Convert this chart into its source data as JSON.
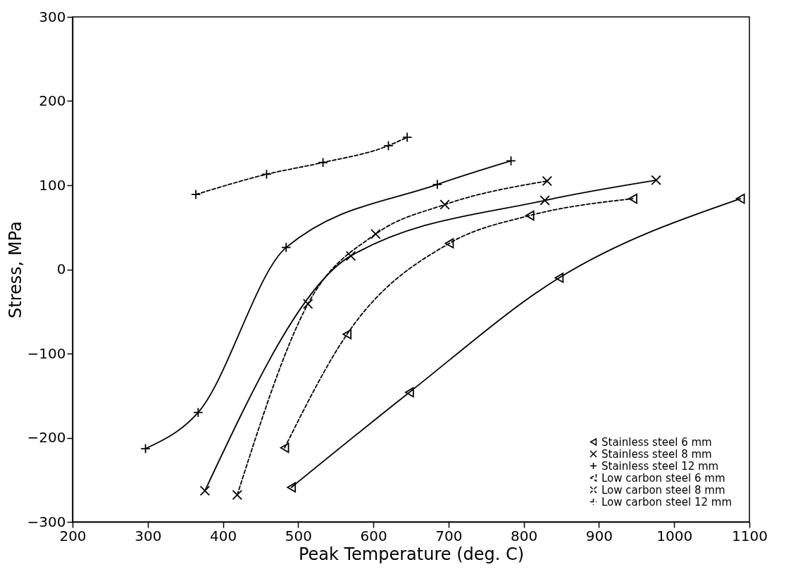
{
  "chart_data": {
    "type": "line",
    "xlabel": "Peak Temperature (deg. C)",
    "ylabel": "Stress, MPa",
    "xlim": [
      200,
      1100
    ],
    "ylim": [
      -300,
      300
    ],
    "xticks": [
      200,
      300,
      400,
      500,
      600,
      700,
      800,
      900,
      1000,
      1100
    ],
    "yticks": [
      -300,
      -200,
      -100,
      0,
      100,
      200,
      300
    ],
    "legend": "bottom right",
    "series": [
      {
        "name": "Stainless steel    6  mm",
        "color": "#000000",
        "marker": "triangle",
        "line_style": "solid",
        "x": [
          491,
          648,
          847,
          1088
        ],
        "values": [
          -259,
          -146,
          -10,
          84
        ]
      },
      {
        "name": "Stainless steel    8  mm",
        "color": "#000000",
        "marker": "cross",
        "line_style": "solid",
        "x": [
          376,
          570,
          828,
          976
        ],
        "values": [
          -263,
          16,
          82,
          106
        ]
      },
      {
        "name": "Stainless steel  12  mm",
        "color": "#000000",
        "marker": "plus",
        "line_style": "solid",
        "x": [
          297,
          367,
          484,
          685,
          783
        ],
        "values": [
          -213,
          -170,
          26,
          101,
          129
        ]
      },
      {
        "name": "Low carbon steel   6  mm",
        "color": "#000000",
        "marker": "triangle",
        "line_style": "dashed",
        "x": [
          482,
          565,
          701,
          808,
          945
        ],
        "values": [
          -212,
          -77,
          31,
          64,
          84
        ]
      },
      {
        "name": "Low carbon steel   8  mm",
        "color": "#000000",
        "marker": "cross",
        "line_style": "dashed",
        "x": [
          419,
          513,
          603,
          695,
          831
        ],
        "values": [
          -268,
          -41,
          42,
          77,
          105
        ]
      },
      {
        "name": "Low carbon steel 12  mm",
        "color": "#000000",
        "marker": "plus",
        "line_style": "dashed",
        "x": [
          364,
          458,
          533,
          620,
          645
        ],
        "values": [
          89,
          113,
          127,
          147,
          157
        ]
      }
    ]
  }
}
